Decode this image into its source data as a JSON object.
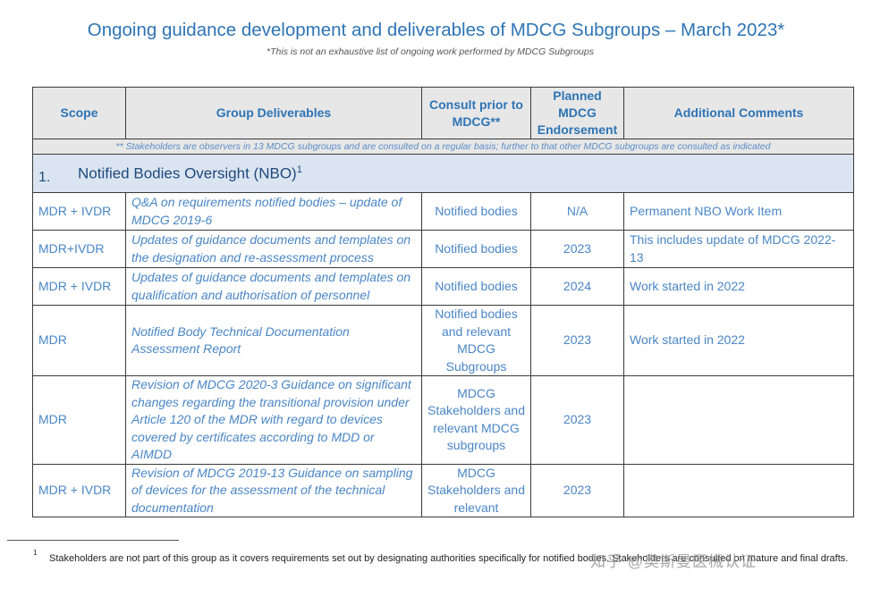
{
  "title": "Ongoing guidance development and deliverables of MDCG Subgroups – March 2023*",
  "subtitle": "*This is not an exhaustive list of ongoing work performed by MDCG Subgroups",
  "table": {
    "headers": {
      "scope": "Scope",
      "deliverables": "Group Deliverables",
      "consult": "Consult prior to MDCG**",
      "planned": "Planned MDCG Endorsement",
      "comments": "Additional Comments"
    },
    "note": "** Stakeholders are observers in 13 MDCG subgroups and are consulted on a regular basis; further to that other MDCG subgroups are consulted as indicated",
    "section": {
      "number": "1.",
      "title": "Notified Bodies Oversight (NBO)",
      "footnote_ref": "1"
    },
    "rows": [
      {
        "scope": "MDR + IVDR",
        "deliverable": "Q&A on requirements notified bodies – update of MDCG 2019-6",
        "consult": "Notified bodies",
        "planned": "N/A",
        "comment": "Permanent NBO Work Item"
      },
      {
        "scope": "MDR+IVDR",
        "deliverable": "Updates of guidance documents and templates on the designation and re-assessment process",
        "consult": "Notified bodies",
        "planned": "2023",
        "comment": "This includes update of MDCG 2022-13"
      },
      {
        "scope": "MDR + IVDR",
        "deliverable": "Updates of guidance documents and templates on qualification and authorisation of personnel",
        "consult": "Notified bodies",
        "planned": "2024",
        "comment": "Work started in 2022"
      },
      {
        "scope": "MDR",
        "deliverable": "Notified Body Technical Documentation Assessment Report",
        "consult": "Notified bodies and relevant MDCG Subgroups",
        "planned": "2023",
        "comment": "Work started in 2022"
      },
      {
        "scope": "MDR",
        "deliverable": "Revision of MDCG 2020-3 Guidance on significant changes regarding the transitional provision under Article 120 of the MDR with regard to devices covered by certificates according to MDD or AIMDD",
        "consult": "MDCG Stakeholders and relevant MDCG subgroups",
        "planned": "2023",
        "comment": ""
      },
      {
        "scope": "MDR + IVDR",
        "deliverable": "Revision of MDCG 2019-13 Guidance on sampling of devices for the assessment of the technical documentation",
        "consult": "MDCG Stakeholders and relevant",
        "planned": "2023",
        "comment": ""
      }
    ]
  },
  "footnote": {
    "marker": "1",
    "text": "Stakeholders are not part of this group as it covers requirements set out by designating authorities specifically for notified bodies. Stakeholders are consulted on mature and final drafts."
  },
  "watermark": "知乎 @奥斯曼医械认证"
}
